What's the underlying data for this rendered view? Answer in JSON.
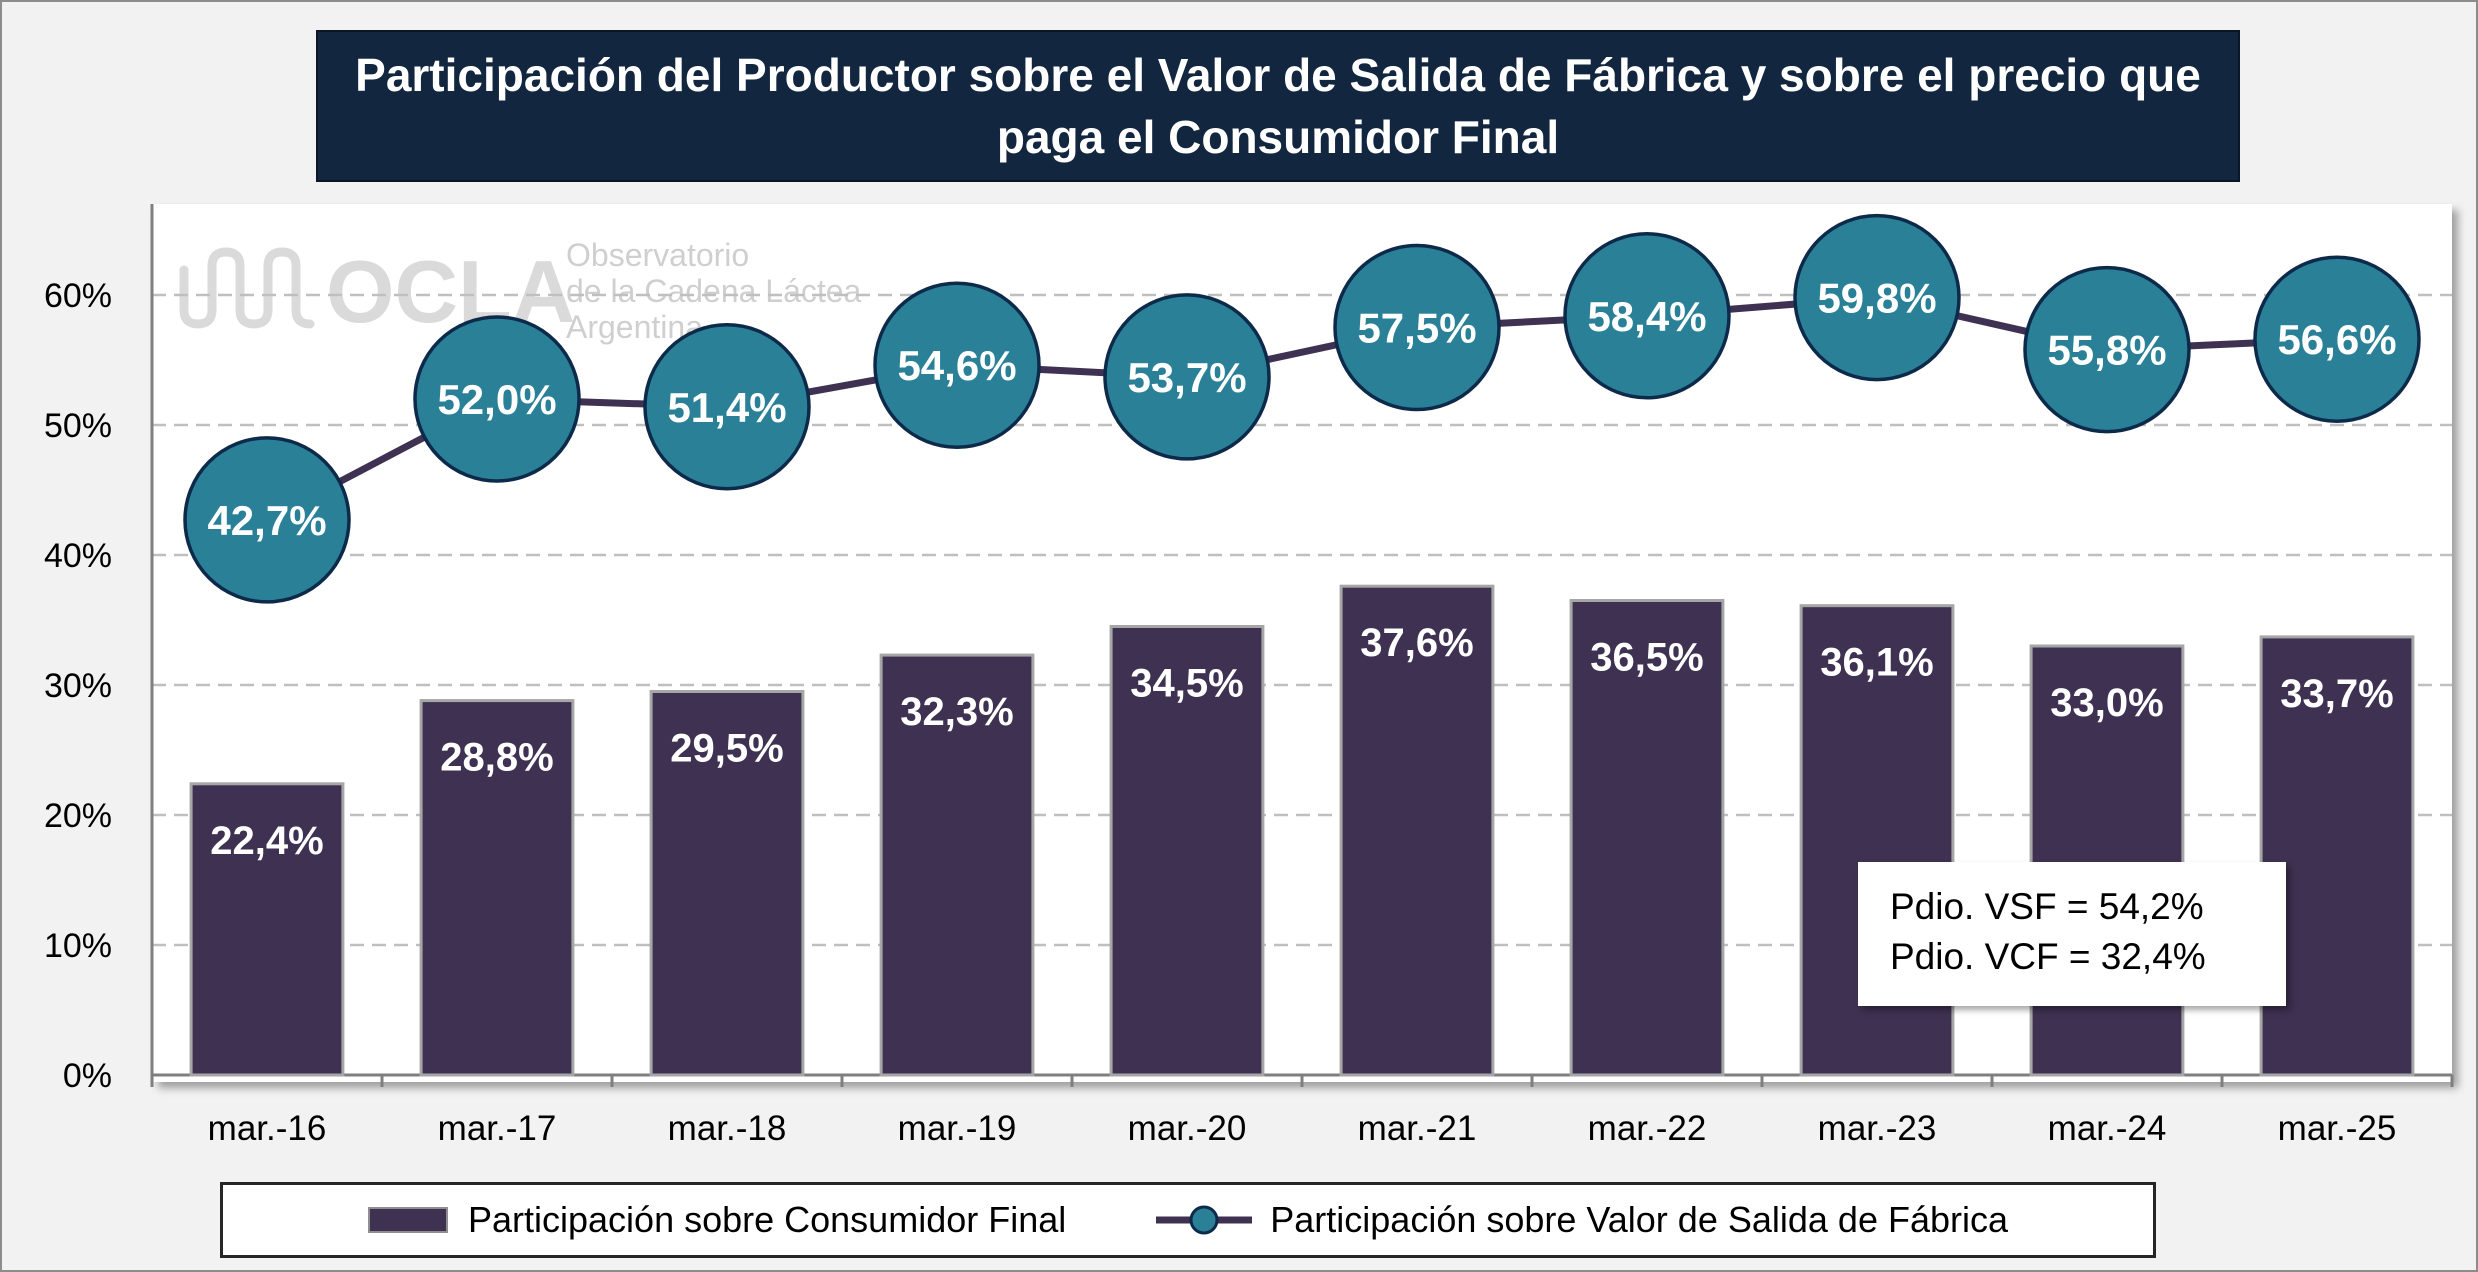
{
  "title": "Participación del Productor sobre el Valor de Salida de Fábrica y sobre el precio que paga el Consumidor Final",
  "watermark": {
    "logo_text": "OCLA",
    "line1": "Observatorio",
    "line2": "de la Cadena Láctea",
    "line3": "Argentina"
  },
  "stats": {
    "vsf": "Pdio. VSF = 54,2%",
    "vcf": "Pdio. VCF = 32,4%"
  },
  "legend": {
    "bar": "Participación sobre Consumidor Final",
    "line": "Participación sobre Valor de Salida de Fábrica"
  },
  "colors": {
    "bar": "#3e3151",
    "line": "#3e3151",
    "marker_fill": "#2a8197",
    "marker_border": "#0d2a4a",
    "grid": "#bfbfbf"
  },
  "chart_data": {
    "type": "bar",
    "categories": [
      "mar.-16",
      "mar.-17",
      "mar.-18",
      "mar.-19",
      "mar.-20",
      "mar.-21",
      "mar.-22",
      "mar.-23",
      "mar.-24",
      "mar.-25"
    ],
    "series": [
      {
        "name": "Participación sobre Consumidor Final",
        "type": "bar",
        "values": [
          22.4,
          28.8,
          29.5,
          32.3,
          34.5,
          37.6,
          36.5,
          36.1,
          33.0,
          33.7
        ],
        "labels": [
          "22,4%",
          "28,8%",
          "29,5%",
          "32,3%",
          "34,5%",
          "37,6%",
          "36,5%",
          "36,1%",
          "33,0%",
          "33,7%"
        ]
      },
      {
        "name": "Participación sobre Valor de Salida de Fábrica",
        "type": "line",
        "values": [
          42.7,
          52.0,
          51.4,
          54.6,
          53.7,
          57.5,
          58.4,
          59.8,
          55.8,
          56.6
        ],
        "labels": [
          "42,7%",
          "52,0%",
          "51,4%",
          "54,6%",
          "53,7%",
          "57,5%",
          "58,4%",
          "59,8%",
          "55,8%",
          "56,6%"
        ]
      }
    ],
    "ylim": [
      0,
      66
    ],
    "yticks": [
      0,
      10,
      20,
      30,
      40,
      50,
      60
    ],
    "ytick_labels": [
      "0%",
      "10%",
      "20%",
      "30%",
      "40%",
      "50%",
      "60%"
    ],
    "grid": "horizontal dashed",
    "legend_position": "bottom"
  }
}
